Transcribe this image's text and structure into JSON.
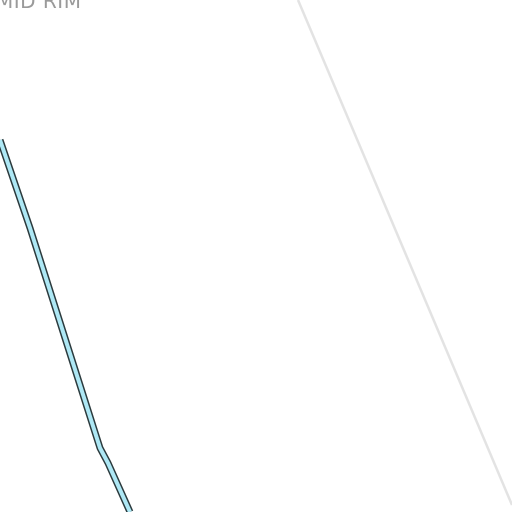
{
  "map": {
    "place_label": "MID RIM",
    "colors": {
      "background": "#ffffff",
      "road_fill": "#aee8f5",
      "road_casing": "#2b3a3d",
      "street_line": "#e3e3e3",
      "label": "#9a9a9a"
    }
  }
}
